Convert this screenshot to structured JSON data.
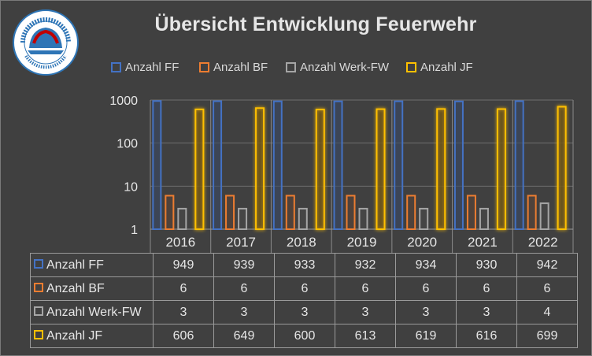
{
  "title": "Übersicht Entwicklung Feuerwehr",
  "logo": {
    "icon": "fire-department-association-seal-icon",
    "text": "LANDESFEUERWEHRVERBAND",
    "colors": [
      "#2e75b6",
      "#c00000",
      "#ffffff"
    ]
  },
  "chart_data": {
    "type": "bar",
    "title": "Übersicht Entwicklung Feuerwehr",
    "xlabel": "",
    "ylabel": "",
    "y_scale": "log",
    "ylim": [
      1,
      1000
    ],
    "y_ticks": [
      "1",
      "10",
      "100",
      "1000"
    ],
    "grid": true,
    "legend_position": "top",
    "data_table": true,
    "categories": [
      "2016",
      "2017",
      "2018",
      "2019",
      "2020",
      "2021",
      "2022"
    ],
    "series": [
      {
        "name": "Anzahl FF",
        "color": "#4472c4",
        "values": [
          949,
          939,
          933,
          932,
          934,
          930,
          942
        ]
      },
      {
        "name": "Anzahl BF",
        "color": "#ed7d31",
        "values": [
          6,
          6,
          6,
          6,
          6,
          6,
          6
        ]
      },
      {
        "name": "Anzahl Werk-FW",
        "color": "#a5a5a5",
        "values": [
          3,
          3,
          3,
          3,
          3,
          3,
          4
        ]
      },
      {
        "name": "Anzahl JF",
        "color": "#ffc000",
        "values": [
          606,
          649,
          600,
          613,
          619,
          616,
          699
        ]
      }
    ]
  },
  "colors": {
    "background": "#404040",
    "grid": "#6e6e6e",
    "text": "#e6e6e6"
  }
}
